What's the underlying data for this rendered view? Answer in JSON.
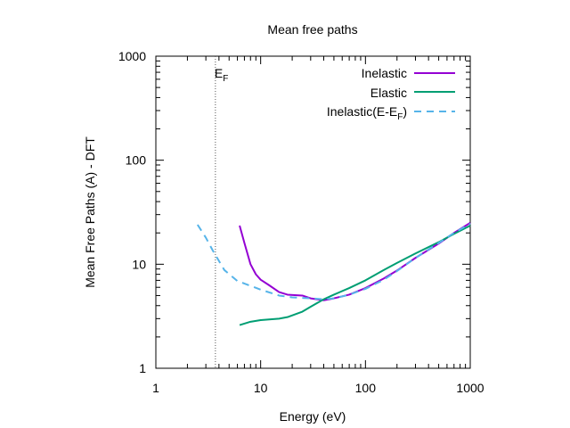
{
  "chart_data": {
    "type": "line",
    "title": "Mean free paths",
    "xlabel": "Energy (eV)",
    "ylabel": "Mean Free Paths (A) - DFT",
    "xscale": "log",
    "yscale": "log",
    "xlim": [
      1,
      1000
    ],
    "ylim": [
      1,
      1000
    ],
    "xticks": [
      1,
      10,
      100,
      1000
    ],
    "xtick_labels": [
      "1",
      "10",
      "100",
      "1000"
    ],
    "yticks": [
      1,
      10,
      100,
      1000
    ],
    "ytick_labels": [
      "1",
      "10",
      "100",
      "1000"
    ],
    "grid": false,
    "legend": "top-right",
    "vline": {
      "x": 3.7,
      "label_main": "E",
      "label_sub": "F",
      "style": "dotted",
      "color": "#555555"
    },
    "series": [
      {
        "name": "Inelastic",
        "color": "#9400d3",
        "dash": "solid",
        "points": [
          [
            6.3,
            23.5
          ],
          [
            7,
            16
          ],
          [
            8,
            10
          ],
          [
            9,
            8
          ],
          [
            10,
            7.1
          ],
          [
            12,
            6.3
          ],
          [
            15,
            5.4
          ],
          [
            18,
            5.1
          ],
          [
            25,
            5.0
          ],
          [
            30,
            4.7
          ],
          [
            40,
            4.5
          ],
          [
            50,
            4.7
          ],
          [
            70,
            5.1
          ],
          [
            100,
            5.9
          ],
          [
            150,
            7.3
          ],
          [
            200,
            8.7
          ],
          [
            300,
            11.5
          ],
          [
            500,
            15.8
          ],
          [
            700,
            20
          ],
          [
            1000,
            25
          ]
        ]
      },
      {
        "name": "Elastic",
        "color": "#009e73",
        "dash": "solid",
        "points": [
          [
            6.3,
            2.6
          ],
          [
            8,
            2.8
          ],
          [
            10,
            2.9
          ],
          [
            15,
            3.0
          ],
          [
            18,
            3.1
          ],
          [
            25,
            3.5
          ],
          [
            30,
            3.9
          ],
          [
            40,
            4.6
          ],
          [
            50,
            5.1
          ],
          [
            70,
            5.9
          ],
          [
            100,
            7.0
          ],
          [
            150,
            8.8
          ],
          [
            200,
            10.3
          ],
          [
            300,
            12.7
          ],
          [
            500,
            16.3
          ],
          [
            700,
            19.6
          ],
          [
            1000,
            23.5
          ]
        ]
      },
      {
        "name": "Inelastic(E-E",
        "name_sub": "F",
        "name_close": ")",
        "color": "#56b4e9",
        "dash": "dashed",
        "points": [
          [
            2.5,
            24
          ],
          [
            3,
            18
          ],
          [
            3.5,
            13.5
          ],
          [
            4.5,
            8.8
          ],
          [
            6,
            6.9
          ],
          [
            8,
            6.2
          ],
          [
            10,
            5.7
          ],
          [
            15,
            5.0
          ],
          [
            20,
            4.8
          ],
          [
            30,
            4.7
          ],
          [
            40,
            4.6
          ],
          [
            50,
            4.7
          ],
          [
            70,
            5.1
          ],
          [
            100,
            5.8
          ],
          [
            150,
            7.1
          ],
          [
            200,
            8.6
          ],
          [
            300,
            11.5
          ],
          [
            500,
            16
          ],
          [
            700,
            20
          ],
          [
            1000,
            24.5
          ]
        ]
      }
    ]
  }
}
